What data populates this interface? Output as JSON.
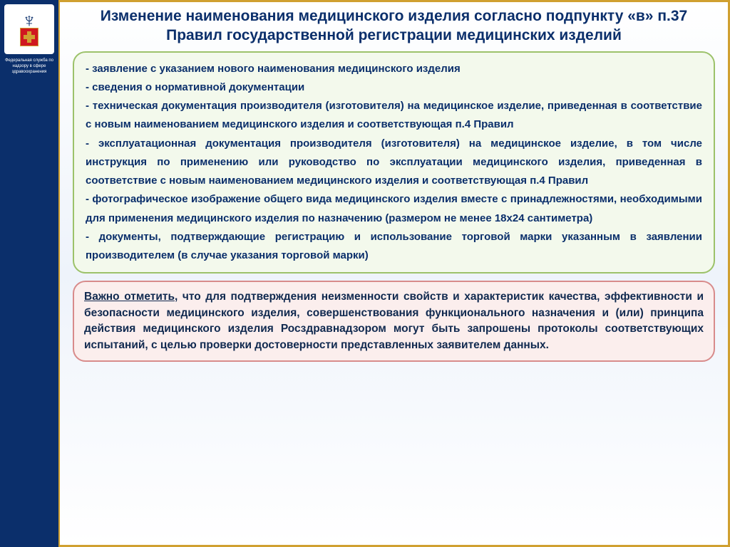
{
  "colors": {
    "sidebar_bg": "#0b2f6b",
    "gold_border": "#d0a030",
    "title_color": "#0b2f6b",
    "green_box_bg": "#f3f9ec",
    "green_box_border": "#9cc26a",
    "red_box_bg": "#fbeeed",
    "red_box_border": "#d88b8b",
    "emblem_red": "#d01820"
  },
  "sidebar": {
    "caption": "Федеральная служба по надзору в сфере здравоохранения"
  },
  "title": "Изменение наименования медицинского изделия согласно подпункту «в» п.37 Правил государственной регистрации медицинских изделий",
  "green_items": [
    "- заявление с указанием нового наименования медицинского изделия",
    "- сведения о нормативной документации",
    "- техническая документация производителя (изготовителя) на медицинское изделие, приведенная в соответствие с новым наименованием медицинского изделия и соответствующая п.4 Правил",
    "- эксплуатационная документация производителя (изготовителя) на медицинское изделие, в том числе инструкция по применению или руководство по эксплуатации медицинского изделия, приведенная в соответствие с новым наименованием медицинского изделия и соответствующая п.4 Правил",
    "- фотографическое изображение общего вида медицинского изделия вместе с принадлежностями, необходимыми для применения медицинского изделия по назначению (размером не менее 18х24 сантиметра)",
    "- документы, подтверждающие регистрацию и использование торговой марки указанным в заявлении производителем (в случае указания торговой марки)"
  ],
  "red_note": {
    "lead": "Важно отметить",
    "rest": ", что для подтверждения неизменности свойств и характеристик качества, эффективности и безопасности медицинского изделия, совершенствования функционального назначения и (или) принципа действия медицинского изделия Росздравнадзором могут быть запрошены протоколы соответствующих испытаний, с целью проверки достоверности представленных заявителем данных."
  }
}
